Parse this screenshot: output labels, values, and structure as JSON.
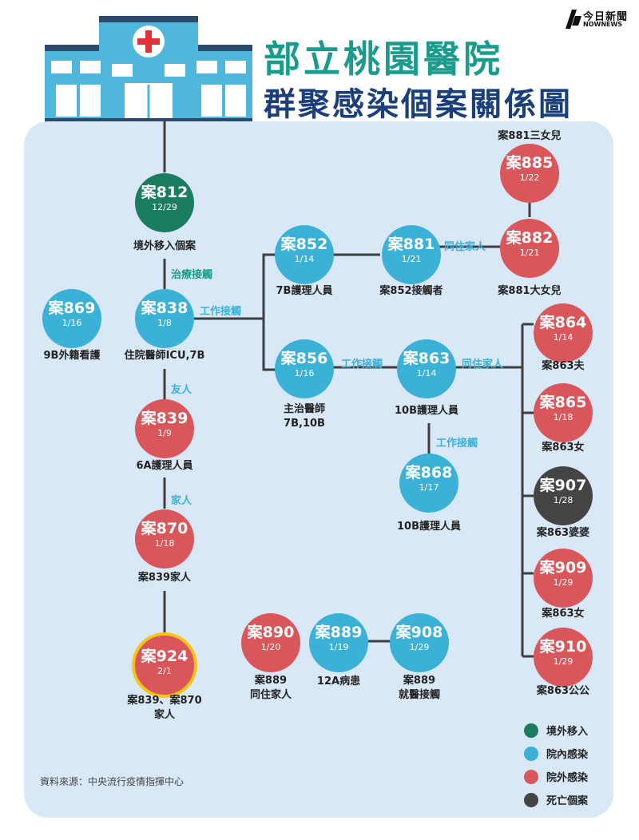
{
  "brand": {
    "name_zh": "今日新聞",
    "name_en": "NOWNEWS"
  },
  "title": {
    "line1": "部立桃園醫院",
    "line2": "群聚感染個案關係圖"
  },
  "colors": {
    "import": "#1a7d60",
    "hospital": "#3cb1d8",
    "community": "#d9575a",
    "death": "#444444",
    "highlight": "#f5c518",
    "panel": "#d9e8f6"
  },
  "nodes": {
    "n812": {
      "name": "案812",
      "date": "12/29",
      "caption": "境外移入個案"
    },
    "n838": {
      "name": "案838",
      "date": "1/8",
      "caption": "住院醫師ICU,7B"
    },
    "n869": {
      "name": "案869",
      "date": "1/16",
      "caption": "9B外籍看護"
    },
    "n839": {
      "name": "案839",
      "date": "1/9",
      "caption": "6A護理人員"
    },
    "n870": {
      "name": "案870",
      "date": "1/18",
      "caption": "案839家人"
    },
    "n924": {
      "name": "案924",
      "date": "2/1",
      "caption1": "案839、案870",
      "caption2": "家人"
    },
    "n852": {
      "name": "案852",
      "date": "1/14",
      "caption": "7B護理人員"
    },
    "n881": {
      "name": "案881",
      "date": "1/21",
      "caption": "案852接觸者"
    },
    "n882": {
      "name": "案882",
      "date": "1/21",
      "caption": "案881大女兒"
    },
    "n885": {
      "name": "案885",
      "date": "1/22",
      "caption": "案881三女兒"
    },
    "n856": {
      "name": "案856",
      "date": "1/16",
      "caption1": "主治醫師",
      "caption2": "7B,10B"
    },
    "n863": {
      "name": "案863",
      "date": "1/14",
      "caption": "10B護理人員"
    },
    "n868": {
      "name": "案868",
      "date": "1/17",
      "caption": "10B護理人員"
    },
    "n864": {
      "name": "案864",
      "date": "1/14",
      "caption": "案863夫"
    },
    "n865": {
      "name": "案865",
      "date": "1/18",
      "caption": "案863女"
    },
    "n907": {
      "name": "案907",
      "date": "1/28",
      "caption": "案863婆婆"
    },
    "n909": {
      "name": "案909",
      "date": "1/29",
      "caption": "案863女"
    },
    "n910": {
      "name": "案910",
      "date": "1/29",
      "caption": "案863公公"
    },
    "n890": {
      "name": "案890",
      "date": "1/20",
      "caption1": "案889",
      "caption2": "同住家人"
    },
    "n889": {
      "name": "案889",
      "date": "1/19",
      "caption": "12A病患"
    },
    "n908": {
      "name": "案908",
      "date": "1/29",
      "caption1": "案889",
      "caption2": "就醫接觸"
    }
  },
  "relations": {
    "r812_838": "治療接觸",
    "r838_work": "工作接觸",
    "r838_839": "友人",
    "r839_870": "家人",
    "r881_882": "同住家人",
    "r856_863": "工作接觸",
    "r863_family": "同住家人",
    "r863_868": "工作接觸"
  },
  "legend": [
    {
      "label": "境外移入",
      "color": "#1a7d60"
    },
    {
      "label": "院內感染",
      "color": "#3cb1d8"
    },
    {
      "label": "院外感染",
      "color": "#d9575a"
    },
    {
      "label": "死亡個案",
      "color": "#444444"
    }
  ],
  "source": "資料來源：中央流行疫情指揮中心"
}
